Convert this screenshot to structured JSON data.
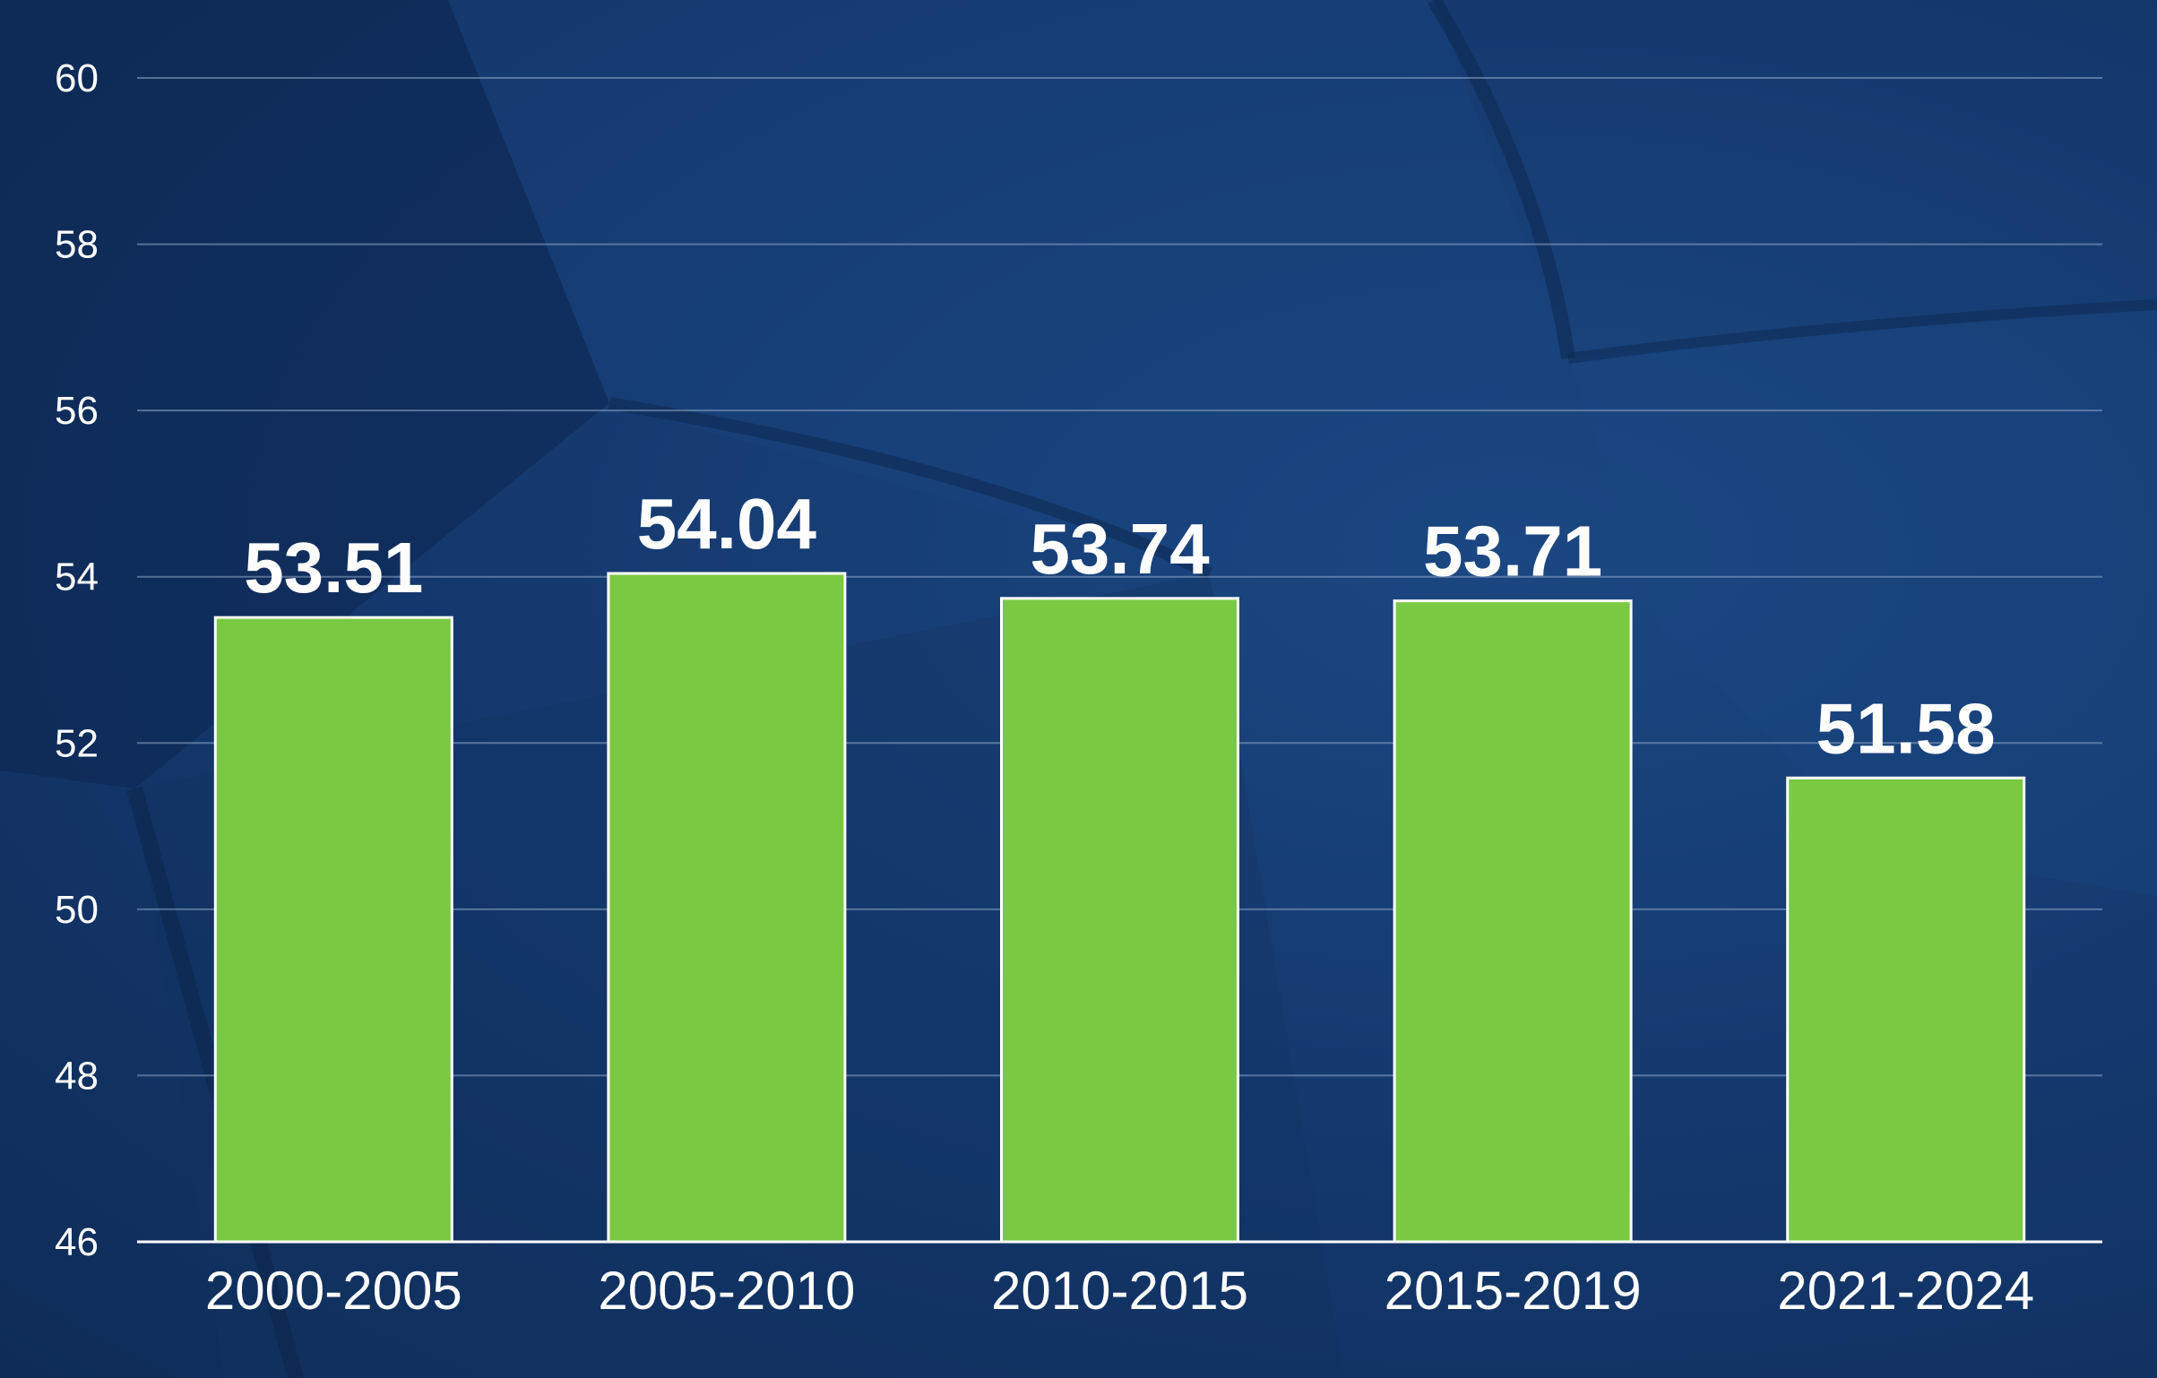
{
  "colors": {
    "bar_fill": "#7ac943",
    "bar_outline": "#ffffff",
    "background": "#143668",
    "text": "#ffffff"
  },
  "chart_data": {
    "type": "bar",
    "title": "",
    "xlabel": "",
    "ylabel": "",
    "categories": [
      "2000-2005",
      "2005-2010",
      "2010-2015",
      "2015-2019",
      "2021-2024"
    ],
    "values": [
      53.51,
      54.04,
      53.74,
      53.71,
      51.58
    ],
    "value_labels": [
      "53.51",
      "54.04",
      "53.74",
      "53.71",
      "51.58"
    ],
    "ylim": [
      46,
      60
    ],
    "yticks": [
      46,
      48,
      50,
      52,
      54,
      56,
      58,
      60
    ],
    "grid": true,
    "legend": "none"
  }
}
